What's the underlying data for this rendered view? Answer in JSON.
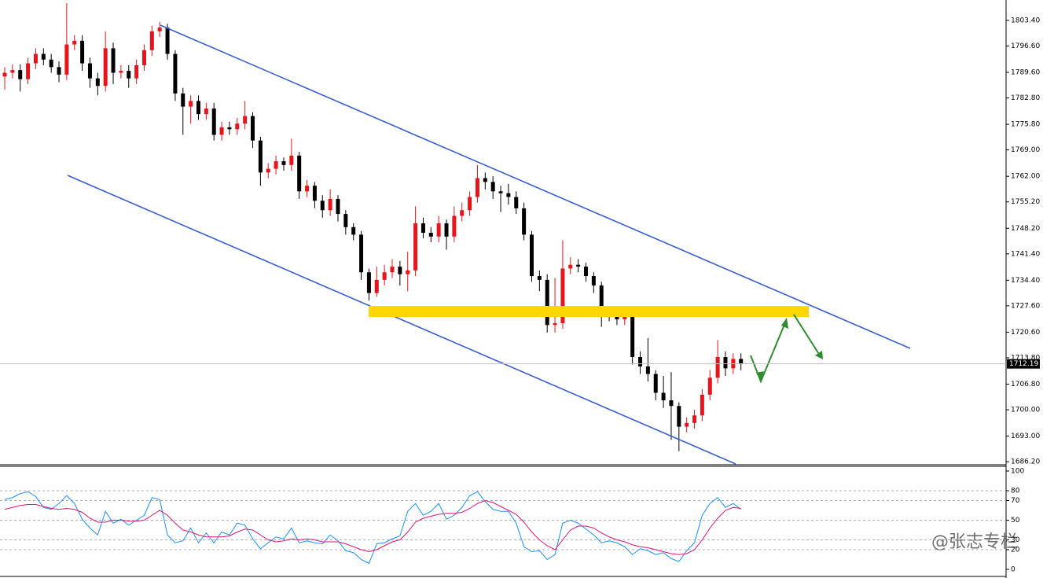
{
  "chart_data": [
    {
      "type": "candlestick",
      "ylim": [
        1685.6,
        1808.4
      ],
      "yticks": [
        {
          "value": 1803.4,
          "label": "1803.40"
        },
        {
          "value": 1796.6,
          "label": "1796.60"
        },
        {
          "value": 1789.6,
          "label": "1789.60"
        },
        {
          "value": 1782.8,
          "label": "1782.80"
        },
        {
          "value": 1775.8,
          "label": "1775.80"
        },
        {
          "value": 1769.0,
          "label": "1769.00"
        },
        {
          "value": 1762.0,
          "label": "1762.00"
        },
        {
          "value": 1755.2,
          "label": "1755.20"
        },
        {
          "value": 1748.2,
          "label": "1748.20"
        },
        {
          "value": 1741.4,
          "label": "1741.40"
        },
        {
          "value": 1734.4,
          "label": "1734.40"
        },
        {
          "value": 1727.6,
          "label": "1727.60"
        },
        {
          "value": 1720.6,
          "label": "1720.60"
        },
        {
          "value": 1713.8,
          "label": "1713.80"
        },
        {
          "value": 1706.8,
          "label": "1706.80"
        },
        {
          "value": 1700.0,
          "label": "1700.00"
        },
        {
          "value": 1693.0,
          "label": "1693.00"
        },
        {
          "value": 1686.2,
          "label": "1686.20"
        }
      ],
      "up_color": "#e8141c",
      "down_color": "#000000",
      "current_price": 1712.19,
      "open": [
        1788.5,
        1789.5,
        1790.2,
        1787.8,
        1792.0,
        1794.5,
        1793.0,
        1791.0,
        1789.0,
        1797.0,
        1798.0,
        1792.0,
        1788.0,
        1786.0,
        1796.0,
        1789.5,
        1790.0,
        1788.0,
        1791.5,
        1795.5,
        1800.5,
        1801.5,
        1794.5,
        1784.0,
        1780.5,
        1782.0,
        1778.5,
        1780.0,
        1773.0,
        1775.0,
        1774.5,
        1776.0,
        1778.0,
        1771.5,
        1763.0,
        1764.0,
        1766.0,
        1765.0,
        1767.5,
        1758.0,
        1759.5,
        1755.5,
        1753.0,
        1756.0,
        1752.0,
        1748.5,
        1746.5,
        1736.5,
        1731.0,
        1734.5,
        1736.5,
        1738.0,
        1736.0,
        1737.0,
        1749.5,
        1747.0,
        1746.0,
        1749.5,
        1746.0,
        1751.5,
        1753.0,
        1756.5,
        1761.5,
        1760.5,
        1758.0,
        1757.5,
        1756.5,
        1753.5,
        1746.5,
        1735.5,
        1734.5,
        1722.5,
        1723.0,
        1737.5,
        1738.5,
        1738.0,
        1735.5,
        1733.0,
        1726.0,
        1725.5,
        1724.0,
        1725.5,
        1714.0,
        1711.5,
        1709.5,
        1704.5,
        1702.5,
        1701.0,
        1695.5,
        1696.5,
        1698.5,
        1704.0,
        1708.5,
        1714.0,
        1711.0,
        1713.5
      ],
      "high": [
        1791.0,
        1791.7,
        1791.7,
        1793.5,
        1796.0,
        1796.0,
        1794.5,
        1792.5,
        1808.0,
        1799.5,
        1799.5,
        1793.5,
        1789.5,
        1800.5,
        1797.5,
        1791.5,
        1791.5,
        1793.0,
        1797.0,
        1802.0,
        1803.0,
        1802.5,
        1795.5,
        1785.5,
        1783.5,
        1783.5,
        1781.5,
        1781.5,
        1776.5,
        1776.5,
        1777.5,
        1782.0,
        1779.0,
        1772.5,
        1765.5,
        1767.5,
        1767.0,
        1772.0,
        1768.5,
        1761.0,
        1760.5,
        1757.0,
        1758.5,
        1757.0,
        1753.0,
        1749.5,
        1747.5,
        1737.5,
        1738.0,
        1738.5,
        1740.0,
        1739.5,
        1742.0,
        1754.0,
        1751.0,
        1748.5,
        1751.5,
        1750.5,
        1754.0,
        1755.0,
        1758.0,
        1765.0,
        1763.0,
        1762.0,
        1759.5,
        1760.0,
        1758.0,
        1755.0,
        1747.5,
        1737.0,
        1736.0,
        1735.0,
        1745.0,
        1740.5,
        1740.0,
        1739.0,
        1736.5,
        1734.0,
        1727.5,
        1726.5,
        1727.5,
        1726.5,
        1715.5,
        1719.0,
        1710.5,
        1709.0,
        1710.0,
        1702.0,
        1698.0,
        1700.0,
        1705.5,
        1710.5,
        1718.5,
        1715.5,
        1715.0,
        1715.0
      ],
      "low": [
        1785.0,
        1788.0,
        1784.5,
        1786.5,
        1790.5,
        1791.5,
        1789.5,
        1787.0,
        1787.5,
        1795.5,
        1790.0,
        1785.5,
        1783.5,
        1784.5,
        1786.5,
        1788.0,
        1785.5,
        1786.5,
        1790.0,
        1794.0,
        1799.0,
        1793.0,
        1782.0,
        1773.0,
        1776.0,
        1777.0,
        1777.0,
        1771.5,
        1771.5,
        1773.0,
        1773.0,
        1774.5,
        1769.5,
        1759.5,
        1761.5,
        1762.5,
        1763.5,
        1763.5,
        1756.0,
        1756.5,
        1753.5,
        1751.0,
        1751.5,
        1750.0,
        1746.5,
        1745.0,
        1734.5,
        1729.0,
        1730.0,
        1733.0,
        1735.0,
        1733.0,
        1731.5,
        1735.5,
        1745.5,
        1744.5,
        1744.5,
        1742.5,
        1744.5,
        1750.0,
        1751.5,
        1755.0,
        1758.5,
        1756.0,
        1752.5,
        1754.5,
        1752.0,
        1745.0,
        1734.0,
        1731.5,
        1720.5,
        1720.5,
        1721.5,
        1736.0,
        1736.5,
        1734.0,
        1731.0,
        1722.0,
        1723.5,
        1722.5,
        1722.5,
        1712.0,
        1709.5,
        1707.5,
        1702.5,
        1700.5,
        1692.0,
        1689.0,
        1694.0,
        1695.0,
        1697.0,
        1702.5,
        1707.0,
        1709.0,
        1709.5,
        1710.5
      ],
      "close": [
        1789.5,
        1790.2,
        1787.8,
        1792.0,
        1794.5,
        1793.0,
        1791.0,
        1789.0,
        1797.0,
        1798.0,
        1792.0,
        1788.0,
        1786.0,
        1796.0,
        1789.5,
        1790.0,
        1788.0,
        1791.5,
        1795.5,
        1800.5,
        1801.5,
        1794.5,
        1784.0,
        1780.5,
        1782.0,
        1778.5,
        1780.0,
        1773.0,
        1775.0,
        1774.5,
        1776.0,
        1778.0,
        1771.5,
        1763.0,
        1764.0,
        1766.0,
        1765.0,
        1767.5,
        1758.0,
        1759.5,
        1755.5,
        1753.0,
        1756.0,
        1752.0,
        1748.5,
        1746.5,
        1736.5,
        1731.0,
        1734.5,
        1736.5,
        1738.0,
        1736.0,
        1737.0,
        1749.5,
        1747.0,
        1746.0,
        1749.5,
        1746.0,
        1751.5,
        1753.0,
        1756.5,
        1761.5,
        1760.5,
        1758.0,
        1757.5,
        1756.5,
        1753.5,
        1746.5,
        1735.5,
        1734.5,
        1722.5,
        1723.0,
        1737.5,
        1738.5,
        1738.0,
        1735.5,
        1733.0,
        1726.0,
        1725.5,
        1724.0,
        1725.5,
        1714.0,
        1711.5,
        1709.5,
        1704.5,
        1702.5,
        1701.0,
        1695.5,
        1696.5,
        1698.5,
        1704.0,
        1708.5,
        1714.0,
        1711.0,
        1713.5,
        1712.2
      ]
    },
    {
      "type": "line",
      "ylim": [
        -7.2,
        104.8
      ],
      "yticks": [
        100,
        80,
        70,
        50,
        30,
        20,
        0
      ],
      "series": [
        {
          "color": "#1e90ff",
          "values": [
            71,
            73,
            77,
            79,
            74,
            63,
            61,
            67,
            75,
            67,
            51,
            42,
            35,
            59,
            47,
            51,
            45,
            50,
            55,
            73,
            71,
            35,
            27,
            29,
            42,
            27,
            37,
            27,
            38,
            35,
            47,
            45,
            31,
            21,
            27,
            33,
            31,
            42,
            27,
            29,
            27,
            26,
            35,
            29,
            19,
            17,
            10,
            6,
            26,
            27,
            31,
            34,
            59,
            67,
            55,
            59,
            67,
            51,
            55,
            63,
            75,
            79,
            69,
            61,
            59,
            59,
            47,
            23,
            18,
            19,
            10,
            15,
            47,
            50,
            47,
            41,
            35,
            27,
            29,
            27,
            23,
            15,
            21,
            19,
            15,
            17,
            11,
            8,
            19,
            27,
            55,
            67,
            73,
            63,
            67,
            61
          ]
        },
        {
          "color": "#e0147a",
          "values": [
            61,
            63,
            65,
            66,
            66,
            64,
            62,
            61,
            62,
            61,
            58,
            52,
            48,
            48,
            50,
            50,
            49,
            49,
            50,
            55,
            60,
            55,
            47,
            40,
            38,
            35,
            33,
            33,
            33,
            34,
            38,
            41,
            40,
            35,
            30,
            28,
            29,
            31,
            30,
            31,
            30,
            28,
            28,
            28,
            26,
            23,
            20,
            18,
            20,
            24,
            28,
            30,
            38,
            48,
            52,
            54,
            56,
            57,
            57,
            58,
            62,
            67,
            70,
            68,
            64,
            60,
            56,
            48,
            38,
            30,
            24,
            20,
            30,
            40,
            44,
            44,
            42,
            37,
            33,
            30,
            28,
            25,
            23,
            22,
            20,
            18,
            16,
            15,
            16,
            20,
            30,
            42,
            52,
            60,
            63,
            62
          ]
        }
      ]
    }
  ],
  "watermark": "@张志专栏"
}
